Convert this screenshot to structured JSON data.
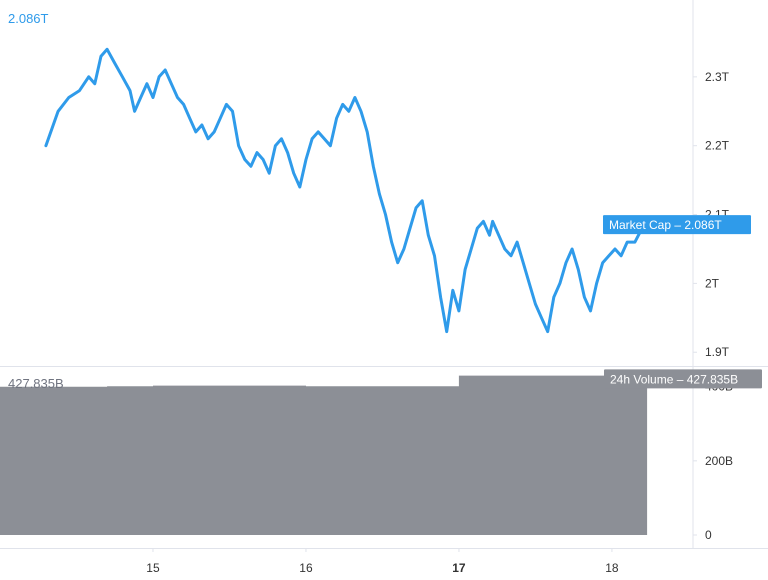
{
  "chart_data": [
    {
      "type": "line",
      "series": [
        {
          "name": "Market Cap",
          "color": "#2f9bea",
          "x": [
            14.3,
            14.38,
            14.45,
            14.52,
            14.58,
            14.62,
            14.66,
            14.7,
            14.75,
            14.8,
            14.85,
            14.88,
            14.92,
            14.96,
            15.0,
            15.04,
            15.08,
            15.12,
            15.16,
            15.2,
            15.24,
            15.28,
            15.32,
            15.36,
            15.4,
            15.44,
            15.48,
            15.52,
            15.56,
            15.6,
            15.64,
            15.68,
            15.72,
            15.76,
            15.8,
            15.84,
            15.88,
            15.92,
            15.96,
            16.0,
            16.04,
            16.08,
            16.12,
            16.16,
            16.2,
            16.24,
            16.28,
            16.32,
            16.36,
            16.4,
            16.44,
            16.48,
            16.52,
            16.56,
            16.6,
            16.64,
            16.68,
            16.72,
            16.76,
            16.8,
            16.84,
            16.88,
            16.92,
            16.96,
            17.0,
            17.04,
            17.08,
            17.12,
            17.16,
            17.2,
            17.22,
            17.26,
            17.3,
            17.34,
            17.38,
            17.42,
            17.46,
            17.5,
            17.54,
            17.58,
            17.62,
            17.66,
            17.7,
            17.74,
            17.78,
            17.82,
            17.86,
            17.9,
            17.94,
            17.98,
            18.02,
            18.06,
            18.1,
            18.15,
            18.22
          ],
          "y": [
            2.2,
            2.25,
            2.27,
            2.28,
            2.3,
            2.29,
            2.33,
            2.34,
            2.32,
            2.3,
            2.28,
            2.25,
            2.27,
            2.29,
            2.27,
            2.3,
            2.31,
            2.29,
            2.27,
            2.26,
            2.24,
            2.22,
            2.23,
            2.21,
            2.22,
            2.24,
            2.26,
            2.25,
            2.2,
            2.18,
            2.17,
            2.19,
            2.18,
            2.16,
            2.2,
            2.21,
            2.19,
            2.16,
            2.14,
            2.18,
            2.21,
            2.22,
            2.21,
            2.2,
            2.24,
            2.26,
            2.25,
            2.27,
            2.25,
            2.22,
            2.17,
            2.13,
            2.1,
            2.06,
            2.03,
            2.05,
            2.08,
            2.11,
            2.12,
            2.07,
            2.04,
            1.98,
            1.93,
            1.99,
            1.96,
            2.02,
            2.05,
            2.08,
            2.09,
            2.07,
            2.09,
            2.07,
            2.05,
            2.04,
            2.06,
            2.03,
            2.0,
            1.97,
            1.95,
            1.93,
            1.98,
            2.0,
            2.03,
            2.05,
            2.02,
            1.98,
            1.96,
            2.0,
            2.03,
            2.04,
            2.05,
            2.04,
            2.06,
            2.06,
            2.09
          ]
        }
      ],
      "title": "",
      "xlabel": "",
      "ylabel": "",
      "ylim": [
        1.88,
        2.4
      ],
      "yticks": [
        {
          "value": 1.9,
          "label": "1.9T"
        },
        {
          "value": 2.0,
          "label": "2T"
        },
        {
          "value": 2.1,
          "label": "2.1T"
        },
        {
          "value": 2.2,
          "label": "2.2T"
        },
        {
          "value": 2.3,
          "label": "2.3T"
        }
      ],
      "current_value_label": "2.086T",
      "current_value": 2.086,
      "tag_label": "Market Cap",
      "tag_value": "2.086T",
      "grid": false
    },
    {
      "type": "area",
      "series": [
        {
          "name": "24h Volume",
          "color": "#8c8f96",
          "x": [
            14.0,
            14.7,
            14.7,
            15.0,
            15.0,
            16.0,
            16.0,
            17.0,
            17.0,
            18.23
          ],
          "y": [
            400,
            400,
            401,
            401,
            403,
            403,
            401,
            401,
            430,
            430
          ]
        }
      ],
      "ylim": [
        0,
        445
      ],
      "yticks": [
        {
          "value": 0,
          "label": "0"
        },
        {
          "value": 200,
          "label": "200B"
        },
        {
          "value": 400,
          "label": "400B"
        }
      ],
      "current_value_label": "427.835B",
      "current_value": 427.835,
      "tag_label": "24h Volume",
      "tag_value": "427.835B",
      "grid": false
    }
  ],
  "x_axis": {
    "ticks": [
      {
        "value": 15,
        "label": "15",
        "bold": false
      },
      {
        "value": 16,
        "label": "16",
        "bold": false
      },
      {
        "value": 17,
        "label": "17",
        "bold": true
      },
      {
        "value": 18,
        "label": "18",
        "bold": false
      }
    ],
    "xlim": [
      14.0,
      18.53
    ]
  },
  "colors": {
    "line": "#2f9bea",
    "volume": "#8c8f96",
    "tag_blue": "#2f9bea",
    "tag_gray": "#8c8f96",
    "axis_border": "#e0e3eb",
    "axis_text": "#333333"
  }
}
